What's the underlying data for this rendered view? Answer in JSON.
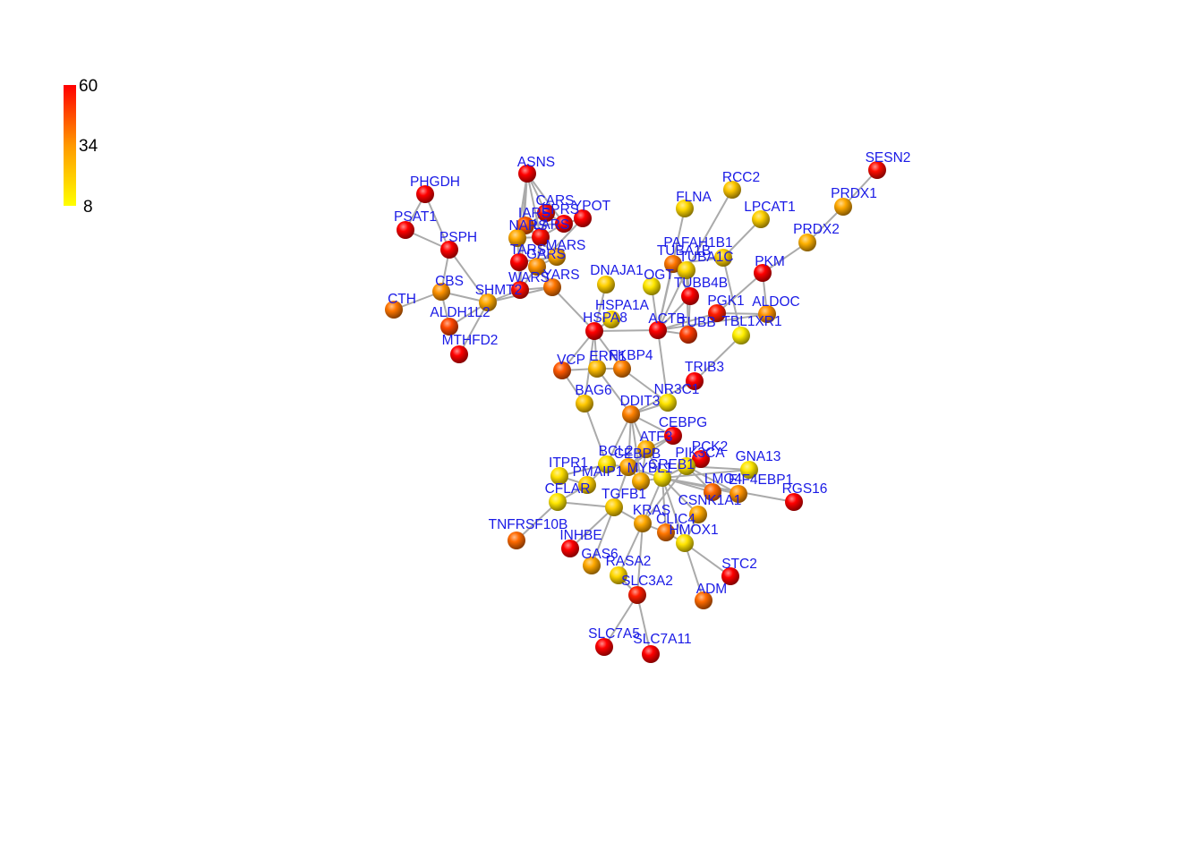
{
  "legend": {
    "max_label": "60",
    "mid_label": "34",
    "min_label": "8",
    "color_low": "#ffff00",
    "color_mid": "#ff9900",
    "color_high": "#ff0000"
  },
  "style": {
    "edge_color": "#aaaaaa",
    "label_color": "#1a1ae6"
  },
  "nodes": [
    {
      "id": "SESN2",
      "value": 58
    },
    {
      "id": "PRDX1",
      "value": 30
    },
    {
      "id": "PRDX2",
      "value": 28
    },
    {
      "id": "RCC2",
      "value": 22
    },
    {
      "id": "LPCAT1",
      "value": 20
    },
    {
      "id": "FLNA",
      "value": 18
    },
    {
      "id": "PKM",
      "value": 60
    },
    {
      "id": "PAFAH1B1",
      "value": 20
    },
    {
      "id": "TUBA1B",
      "value": 40
    },
    {
      "id": "TUBA1C",
      "value": 18
    },
    {
      "id": "OGT",
      "value": 14
    },
    {
      "id": "TUBB4B",
      "value": 60
    },
    {
      "id": "PGK1",
      "value": 55
    },
    {
      "id": "ALDOC",
      "value": 35
    },
    {
      "id": "TBL1XR1",
      "value": 12
    },
    {
      "id": "ACTB",
      "value": 60
    },
    {
      "id": "TUBB",
      "value": 50
    },
    {
      "id": "DNAJA1",
      "value": 20
    },
    {
      "id": "HSPA1A",
      "value": 18
    },
    {
      "id": "HSPA8",
      "value": 60
    },
    {
      "id": "ASNS",
      "value": 60
    },
    {
      "id": "CARS",
      "value": 58
    },
    {
      "id": "EPRS",
      "value": 60
    },
    {
      "id": "YPOT",
      "value": 60
    },
    {
      "id": "IARS",
      "value": 45
    },
    {
      "id": "NARS",
      "value": 30
    },
    {
      "id": "LARS",
      "value": 58
    },
    {
      "id": "MARS",
      "value": 30
    },
    {
      "id": "TARS",
      "value": 60
    },
    {
      "id": "GARS",
      "value": 35
    },
    {
      "id": "WARS",
      "value": 58
    },
    {
      "id": "YARS",
      "value": 40
    },
    {
      "id": "PHGDH",
      "value": 60
    },
    {
      "id": "PSAT1",
      "value": 60
    },
    {
      "id": "PSPH",
      "value": 60
    },
    {
      "id": "CBS",
      "value": 35
    },
    {
      "id": "SHMT2",
      "value": 30
    },
    {
      "id": "CTH",
      "value": 40
    },
    {
      "id": "ALDH1L2",
      "value": 48
    },
    {
      "id": "MTHFD2",
      "value": 60
    },
    {
      "id": "VCP",
      "value": 45
    },
    {
      "id": "ERN1",
      "value": 25
    },
    {
      "id": "FKBP4",
      "value": 38
    },
    {
      "id": "TRIB3",
      "value": 60
    },
    {
      "id": "NR3C1",
      "value": 15
    },
    {
      "id": "BAG6",
      "value": 22
    },
    {
      "id": "DDIT3",
      "value": 38
    },
    {
      "id": "CEBPG",
      "value": 60
    },
    {
      "id": "ATF3",
      "value": 28
    },
    {
      "id": "PCK2",
      "value": 60
    },
    {
      "id": "PIK3CA",
      "value": 15
    },
    {
      "id": "GNA13",
      "value": 14
    },
    {
      "id": "BCL2",
      "value": 15
    },
    {
      "id": "CEBPB",
      "value": 30
    },
    {
      "id": "MYBL1",
      "value": 28
    },
    {
      "id": "CREB1",
      "value": 15
    },
    {
      "id": "ITPR1",
      "value": 16
    },
    {
      "id": "PMAIP1",
      "value": 20
    },
    {
      "id": "LMO4",
      "value": 42
    },
    {
      "id": "EIF4EBP1",
      "value": 35
    },
    {
      "id": "RGS16",
      "value": 60
    },
    {
      "id": "CFLAR",
      "value": 14
    },
    {
      "id": "TGFB1",
      "value": 20
    },
    {
      "id": "CSNK1A1",
      "value": 30
    },
    {
      "id": "KRAS",
      "value": 30
    },
    {
      "id": "CLIC4",
      "value": 40
    },
    {
      "id": "HMOX1",
      "value": 15
    },
    {
      "id": "TNFRSF10B",
      "value": 42
    },
    {
      "id": "INHBE",
      "value": 60
    },
    {
      "id": "GAS6",
      "value": 30
    },
    {
      "id": "RASA2",
      "value": 18
    },
    {
      "id": "SLC3A2",
      "value": 55
    },
    {
      "id": "STC2",
      "value": 60
    },
    {
      "id": "ADM",
      "value": 42
    },
    {
      "id": "SLC7A5",
      "value": 60
    },
    {
      "id": "SLC7A11",
      "value": 60
    }
  ],
  "edges": [
    [
      "SESN2",
      "PRDX1"
    ],
    [
      "PRDX1",
      "PRDX2"
    ],
    [
      "PRDX2",
      "PKM"
    ],
    [
      "RCC2",
      "TUBA1C"
    ],
    [
      "LPCAT1",
      "PAFAH1B1"
    ],
    [
      "FLNA",
      "ACTB"
    ],
    [
      "PKM",
      "PGK1"
    ],
    [
      "PKM",
      "ALDOC"
    ],
    [
      "PGK1",
      "ALDOC"
    ],
    [
      "PAFAH1B1",
      "TUBA1B"
    ],
    [
      "PAFAH1B1",
      "TBL1XR1"
    ],
    [
      "TUBA1B",
      "TUBB4B"
    ],
    [
      "TUBA1B",
      "ACTB"
    ],
    [
      "TUBA1C",
      "TUBB"
    ],
    [
      "TUBA1C",
      "TUBB4B"
    ],
    [
      "TUBA1C",
      "ACTB"
    ],
    [
      "OGT",
      "ACTB"
    ],
    [
      "TUBB4B",
      "TUBB"
    ],
    [
      "TUBB4B",
      "ACTB"
    ],
    [
      "PGK1",
      "ACTB"
    ],
    [
      "ALDOC",
      "ACTB"
    ],
    [
      "TBL1XR1",
      "TRIB3"
    ],
    [
      "ACTB",
      "TUBB"
    ],
    [
      "ACTB",
      "HSPA8"
    ],
    [
      "ACTB",
      "NR3C1"
    ],
    [
      "DNAJA1",
      "HSPA8"
    ],
    [
      "HSPA1A",
      "HSPA8"
    ],
    [
      "HSPA8",
      "YARS"
    ],
    [
      "HSPA8",
      "VCP"
    ],
    [
      "HSPA8",
      "ERN1"
    ],
    [
      "HSPA8",
      "FKBP4"
    ],
    [
      "HSPA8",
      "BAG6"
    ],
    [
      "ASNS",
      "CARS"
    ],
    [
      "ASNS",
      "EPRS"
    ],
    [
      "ASNS",
      "NARS"
    ],
    [
      "ASNS",
      "TARS"
    ],
    [
      "ASNS",
      "WARS"
    ],
    [
      "ASNS",
      "LARS"
    ],
    [
      "CARS",
      "EPRS"
    ],
    [
      "CARS",
      "IARS"
    ],
    [
      "CARS",
      "GARS"
    ],
    [
      "EPRS",
      "YPOT"
    ],
    [
      "EPRS",
      "LARS"
    ],
    [
      "EPRS",
      "IARS"
    ],
    [
      "YPOT",
      "GARS"
    ],
    [
      "IARS",
      "LARS"
    ],
    [
      "IARS",
      "MARS"
    ],
    [
      "NARS",
      "LARS"
    ],
    [
      "NARS",
      "TARS"
    ],
    [
      "LARS",
      "GARS"
    ],
    [
      "MARS",
      "GARS"
    ],
    [
      "MARS",
      "TARS"
    ],
    [
      "TARS",
      "WARS"
    ],
    [
      "GARS",
      "WARS"
    ],
    [
      "GARS",
      "YARS"
    ],
    [
      "WARS",
      "YARS"
    ],
    [
      "WARS",
      "SHMT2"
    ],
    [
      "YARS",
      "SHMT2"
    ],
    [
      "PHGDH",
      "PSAT1"
    ],
    [
      "PHGDH",
      "PSPH"
    ],
    [
      "PSAT1",
      "PSPH"
    ],
    [
      "PSPH",
      "SHMT2"
    ],
    [
      "PSPH",
      "CBS"
    ],
    [
      "CBS",
      "CTH"
    ],
    [
      "CBS",
      "SHMT2"
    ],
    [
      "CBS",
      "ALDH1L2"
    ],
    [
      "SHMT2",
      "MTHFD2"
    ],
    [
      "SHMT2",
      "ALDH1L2"
    ],
    [
      "VCP",
      "ERN1"
    ],
    [
      "VCP",
      "BAG6"
    ],
    [
      "ERN1",
      "DDIT3"
    ],
    [
      "ERN1",
      "FKBP4"
    ],
    [
      "FKBP4",
      "NR3C1"
    ],
    [
      "TRIB3",
      "DDIT3"
    ],
    [
      "NR3C1",
      "DDIT3"
    ],
    [
      "BAG6",
      "BCL2"
    ],
    [
      "DDIT3",
      "CEBPG"
    ],
    [
      "DDIT3",
      "ATF3"
    ],
    [
      "DDIT3",
      "CEBPB"
    ],
    [
      "DDIT3",
      "BCL2"
    ],
    [
      "DDIT3",
      "MYBL1"
    ],
    [
      "CEBPG",
      "ATF3"
    ],
    [
      "CEBPG",
      "CEBPB"
    ],
    [
      "ATF3",
      "CREB1"
    ],
    [
      "ATF3",
      "MYBL1"
    ],
    [
      "ATF3",
      "CEBPB"
    ],
    [
      "PCK2",
      "CREB1"
    ],
    [
      "PIK3CA",
      "GNA13"
    ],
    [
      "PIK3CA",
      "CREB1"
    ],
    [
      "PIK3CA",
      "KRAS"
    ],
    [
      "PIK3CA",
      "EIF4EBP1"
    ],
    [
      "PIK3CA",
      "LMO4"
    ],
    [
      "GNA13",
      "CREB1"
    ],
    [
      "BCL2",
      "CEBPB"
    ],
    [
      "BCL2",
      "PMAIP1"
    ],
    [
      "BCL2",
      "ITPR1"
    ],
    [
      "CEBPB",
      "CREB1"
    ],
    [
      "CEBPB",
      "MYBL1"
    ],
    [
      "CEBPB",
      "TGFB1"
    ],
    [
      "MYBL1",
      "CREB1"
    ],
    [
      "CREB1",
      "LMO4"
    ],
    [
      "CREB1",
      "EIF4EBP1"
    ],
    [
      "CREB1",
      "RGS16"
    ],
    [
      "CREB1",
      "CSNK1A1"
    ],
    [
      "CREB1",
      "KRAS"
    ],
    [
      "CREB1",
      "HMOX1"
    ],
    [
      "CREB1",
      "CLIC4"
    ],
    [
      "ITPR1",
      "PMAIP1"
    ],
    [
      "PMAIP1",
      "CFLAR"
    ],
    [
      "TGFB1",
      "CFLAR"
    ],
    [
      "TGFB1",
      "GAS6"
    ],
    [
      "TGFB1",
      "INHBE"
    ],
    [
      "TGFB1",
      "KRAS"
    ],
    [
      "CFLAR",
      "TNFRSF10B"
    ],
    [
      "KRAS",
      "RASA2"
    ],
    [
      "KRAS",
      "SLC3A2"
    ],
    [
      "KRAS",
      "CLIC4"
    ],
    [
      "HMOX1",
      "STC2"
    ],
    [
      "HMOX1",
      "ADM"
    ],
    [
      "HMOX1",
      "CSNK1A1"
    ],
    [
      "CLIC4",
      "HMOX1"
    ],
    [
      "SLC3A2",
      "SLC7A5"
    ],
    [
      "SLC3A2",
      "SLC7A11"
    ],
    [
      "SLC3A2",
      "RASA2"
    ]
  ]
}
